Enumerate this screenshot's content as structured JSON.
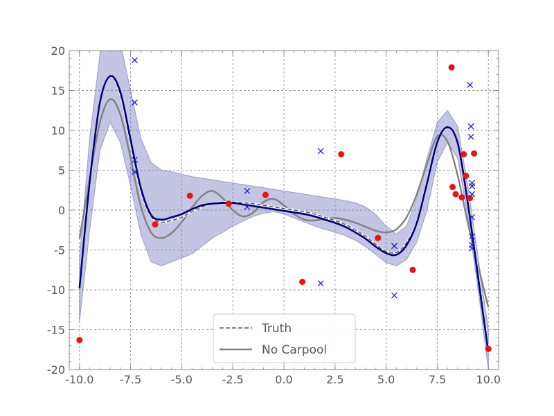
{
  "chart_data": {
    "type": "line",
    "title": "",
    "xlabel": "",
    "ylabel": "",
    "xlim": [
      -10.5,
      10.5
    ],
    "ylim": [
      -20,
      20
    ],
    "xticks": [
      -10.0,
      -7.5,
      -5.0,
      -2.5,
      0.0,
      2.5,
      5.0,
      7.5,
      10.0
    ],
    "xtick_labels": [
      "-10.0",
      "-7.5",
      "-5.0",
      "-2.5",
      "0.0",
      "2.5",
      "5.0",
      "7.5",
      "10.0"
    ],
    "yticks": [
      -20,
      -15,
      -10,
      -5,
      0,
      5,
      10,
      15,
      20
    ],
    "ytick_labels": [
      "-20",
      "-15",
      "-10",
      "-5",
      "0",
      "5",
      "10",
      "15",
      "20"
    ],
    "grid": true,
    "legend_position": "bottom-center",
    "legend": [
      {
        "label": "Truth",
        "style": "dashed",
        "color": "#555555"
      },
      {
        "label": "No Carpool",
        "style": "solid",
        "color": "#808080"
      }
    ],
    "series": [
      {
        "kind": "band",
        "color": "#7b7fbe",
        "x": [
          -10.0,
          -9.5,
          -9.0,
          -8.5,
          -8.0,
          -7.5,
          -7.0,
          -6.5,
          -6.0,
          -5.5,
          -5.0,
          -4.5,
          -4.0,
          -3.5,
          -3.0,
          -2.5,
          -2.0,
          -1.5,
          -1.0,
          -0.5,
          0.0,
          0.5,
          1.0,
          1.5,
          2.0,
          2.5,
          3.0,
          3.5,
          4.0,
          4.5,
          5.0,
          5.5,
          6.0,
          6.5,
          7.0,
          7.5,
          8.0,
          8.5,
          9.0,
          9.5,
          10.0
        ],
        "upper": [
          -6.0,
          9.0,
          19.5,
          23.0,
          21.0,
          15.0,
          9.0,
          6.0,
          5.0,
          4.8,
          4.5,
          4.2,
          4.0,
          3.8,
          3.6,
          3.4,
          3.2,
          3.0,
          2.8,
          2.6,
          2.4,
          2.2,
          2.0,
          1.8,
          1.6,
          1.4,
          1.2,
          0.9,
          0.4,
          -0.6,
          -2.0,
          -3.0,
          -2.0,
          1.5,
          6.5,
          11.0,
          12.5,
          10.5,
          3.0,
          -6.0,
          -15.0
        ],
        "lower": [
          -14.0,
          -2.5,
          7.5,
          11.0,
          8.5,
          3.0,
          -3.0,
          -6.5,
          -7.0,
          -6.5,
          -6.0,
          -5.5,
          -4.5,
          -3.5,
          -2.8,
          -2.0,
          -1.4,
          -0.8,
          -0.4,
          -0.2,
          -0.5,
          -1.0,
          -1.5,
          -2.0,
          -2.4,
          -2.8,
          -3.2,
          -3.8,
          -4.6,
          -5.6,
          -6.6,
          -7.0,
          -6.2,
          -4.0,
          0.0,
          6.0,
          8.5,
          6.5,
          -1.0,
          -10.0,
          -20.0
        ]
      },
      {
        "kind": "line",
        "name": "Truth",
        "color": "#555555",
        "dash": "dashed",
        "x": [
          -10.0,
          -9.5,
          -9.0,
          -8.5,
          -8.0,
          -7.5,
          -7.0,
          -6.5,
          -6.0,
          -5.5,
          -5.0,
          -4.5,
          -4.0,
          -3.5,
          -3.0,
          -2.5,
          -2.0,
          -1.5,
          -1.0,
          -0.5,
          0.0,
          0.5,
          1.0,
          1.5,
          2.0,
          2.5,
          3.0,
          3.5,
          4.0,
          4.5,
          5.0,
          5.5,
          6.0,
          6.5,
          7.0,
          7.5,
          8.0,
          8.5,
          9.0,
          9.5,
          10.0
        ],
        "y": [
          -9.6,
          3.5,
          13.5,
          16.8,
          14.5,
          8.5,
          2.5,
          -0.8,
          -1.5,
          -1.3,
          -0.9,
          -0.2,
          0.4,
          0.8,
          1.0,
          1.0,
          0.9,
          0.8,
          0.6,
          0.4,
          0.2,
          0.0,
          -0.2,
          -0.5,
          -0.9,
          -1.3,
          -1.8,
          -2.5,
          -3.3,
          -4.3,
          -5.2,
          -5.3,
          -4.1,
          -1.5,
          3.5,
          8.5,
          10.3,
          8.5,
          1.0,
          -8.0,
          -17.6
        ]
      },
      {
        "kind": "line",
        "name": "No Carpool",
        "color": "#808080",
        "dash": "solid",
        "x": [
          -10.0,
          -9.5,
          -9.0,
          -8.5,
          -8.0,
          -7.5,
          -7.0,
          -6.5,
          -6.0,
          -5.5,
          -5.0,
          -4.5,
          -4.0,
          -3.5,
          -3.0,
          -2.5,
          -2.0,
          -1.5,
          -1.0,
          -0.5,
          0.0,
          0.5,
          1.0,
          1.5,
          2.0,
          2.5,
          3.0,
          3.5,
          4.0,
          4.5,
          5.0,
          5.5,
          6.0,
          6.5,
          7.0,
          7.5,
          8.0,
          8.5,
          9.0,
          9.5,
          10.0
        ],
        "y": [
          -3.6,
          4.0,
          11.0,
          13.9,
          12.0,
          6.5,
          0.5,
          -2.8,
          -3.5,
          -2.9,
          -1.5,
          0.3,
          1.8,
          2.4,
          1.5,
          0.0,
          -0.8,
          -0.3,
          1.0,
          1.4,
          0.6,
          -0.5,
          -1.2,
          -1.3,
          -1.1,
          -1.0,
          -1.2,
          -1.6,
          -2.1,
          -2.6,
          -2.8,
          -2.4,
          -0.9,
          2.0,
          5.8,
          9.2,
          8.6,
          4.3,
          -1.7,
          -7.0,
          -12.2
        ]
      },
      {
        "kind": "line",
        "name": "",
        "color": "#000080",
        "dash": "solid",
        "x": [
          -10.0,
          -9.5,
          -9.0,
          -8.5,
          -8.0,
          -7.5,
          -7.0,
          -6.5,
          -6.0,
          -5.5,
          -5.0,
          -4.5,
          -4.0,
          -3.5,
          -3.0,
          -2.5,
          -2.0,
          -1.5,
          -1.0,
          -0.5,
          0.0,
          0.5,
          1.0,
          1.5,
          2.0,
          2.5,
          3.0,
          3.5,
          4.0,
          4.5,
          5.0,
          5.5,
          6.0,
          6.5,
          7.0,
          7.5,
          8.0,
          8.5,
          9.0,
          9.5,
          10.0
        ],
        "y": [
          -9.8,
          3.5,
          13.5,
          16.8,
          14.8,
          8.8,
          2.8,
          -0.6,
          -1.2,
          -0.9,
          -0.5,
          0.1,
          0.6,
          0.8,
          0.9,
          0.9,
          0.7,
          0.5,
          0.3,
          0.1,
          -0.1,
          -0.3,
          -0.5,
          -0.8,
          -1.2,
          -1.6,
          -2.1,
          -2.8,
          -3.6,
          -4.6,
          -5.4,
          -5.6,
          -4.4,
          -1.6,
          3.4,
          8.5,
          10.4,
          8.4,
          0.8,
          -8.5,
          -17.8
        ]
      }
    ],
    "scatter": [
      {
        "marker": "circle",
        "color": "#ee1111",
        "x": [
          -10.0,
          -6.3,
          -4.6,
          -2.7,
          -0.9,
          0.9,
          2.8,
          4.6,
          6.3,
          8.2,
          8.25,
          8.4,
          8.7,
          8.8,
          8.9,
          9.1,
          9.3,
          10.0
        ],
        "y": [
          -16.3,
          -1.8,
          1.8,
          0.8,
          1.9,
          -9.0,
          7.0,
          -3.5,
          -7.5,
          17.9,
          2.9,
          2.0,
          1.6,
          7.0,
          4.3,
          1.5,
          7.1,
          -17.4
        ]
      },
      {
        "marker": "x",
        "color": "#1a1ad6",
        "x": [
          -7.3,
          -7.3,
          -7.3,
          -7.3,
          -1.8,
          -1.8,
          1.8,
          1.8,
          5.4,
          5.4,
          9.1,
          9.15,
          9.15,
          9.2,
          9.2,
          9.2,
          9.2,
          9.2,
          9.2,
          9.2
        ],
        "y": [
          18.8,
          13.5,
          6.3,
          4.8,
          2.4,
          0.4,
          7.4,
          -9.2,
          -4.5,
          -10.7,
          15.7,
          10.5,
          9.2,
          3.4,
          3.0,
          -0.9,
          -3.3,
          -4.4,
          -4.8,
          2.0
        ]
      }
    ]
  }
}
